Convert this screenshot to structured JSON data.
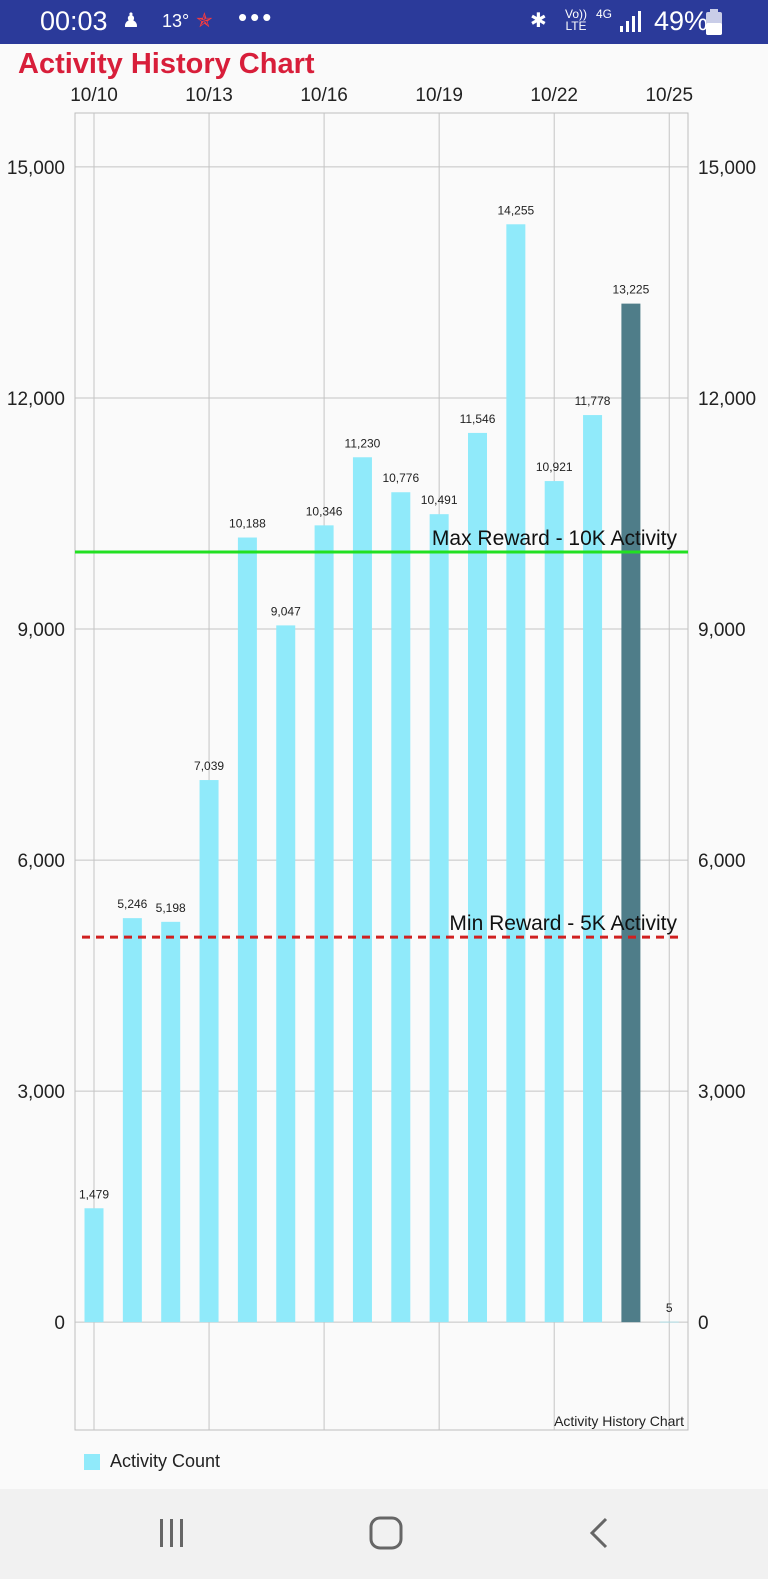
{
  "status_bar": {
    "time": "00:03",
    "temperature": "13°",
    "network": "Vo)) LTE",
    "net_4g": "4G",
    "battery": "49%",
    "more": "•••"
  },
  "page": {
    "title": "Activity History Chart"
  },
  "legend": {
    "label": "Activity Count"
  },
  "colors": {
    "bar": "#90eafa",
    "bar_highlight": "#4f7d89",
    "max_line": "#22e022",
    "min_line": "#d02020",
    "title": "#d81e3a",
    "status_bar": "#2b3a9a"
  },
  "chart_data": {
    "type": "bar",
    "title": "Activity History Chart",
    "series": [
      {
        "name": "Activity Count",
        "values": [
          1479,
          5246,
          5198,
          7039,
          10188,
          9047,
          10346,
          11230,
          10776,
          10491,
          11546,
          14255,
          10921,
          11778,
          13225,
          5
        ],
        "labels": [
          "1,479",
          "5,246",
          "5,198",
          "7,039",
          "10,188",
          "9,047",
          "10,346",
          "11,230",
          "10,776",
          "10,491",
          "11,546",
          "14,255",
          "10,921",
          "11,778",
          "13,225",
          "5"
        ],
        "highlight_index": 14
      }
    ],
    "day_offsets": [
      0,
      1,
      2,
      3,
      4,
      5,
      6,
      7,
      8,
      9,
      10,
      11,
      12,
      13,
      14,
      15
    ],
    "x_tick_labels": [
      "10/10",
      "10/13",
      "10/16",
      "10/19",
      "10/22",
      "10/25"
    ],
    "x_tick_offsets": [
      0,
      3,
      6,
      9,
      12,
      15
    ],
    "y_ticks": [
      0,
      3000,
      6000,
      9000,
      12000,
      15000
    ],
    "y_tick_labels": [
      "0",
      "3,000",
      "6,000",
      "9,000",
      "12,000",
      "15,000"
    ],
    "ylim": [
      -1400,
      15700
    ],
    "reference_lines": [
      {
        "label": "Max Reward - 10K Activity",
        "value": 10000,
        "style": "solid"
      },
      {
        "label": "Min Reward - 5K Activity",
        "value": 5000,
        "style": "dashed"
      }
    ],
    "description": "Activity History Chart",
    "legend_position": "bottom-left"
  }
}
